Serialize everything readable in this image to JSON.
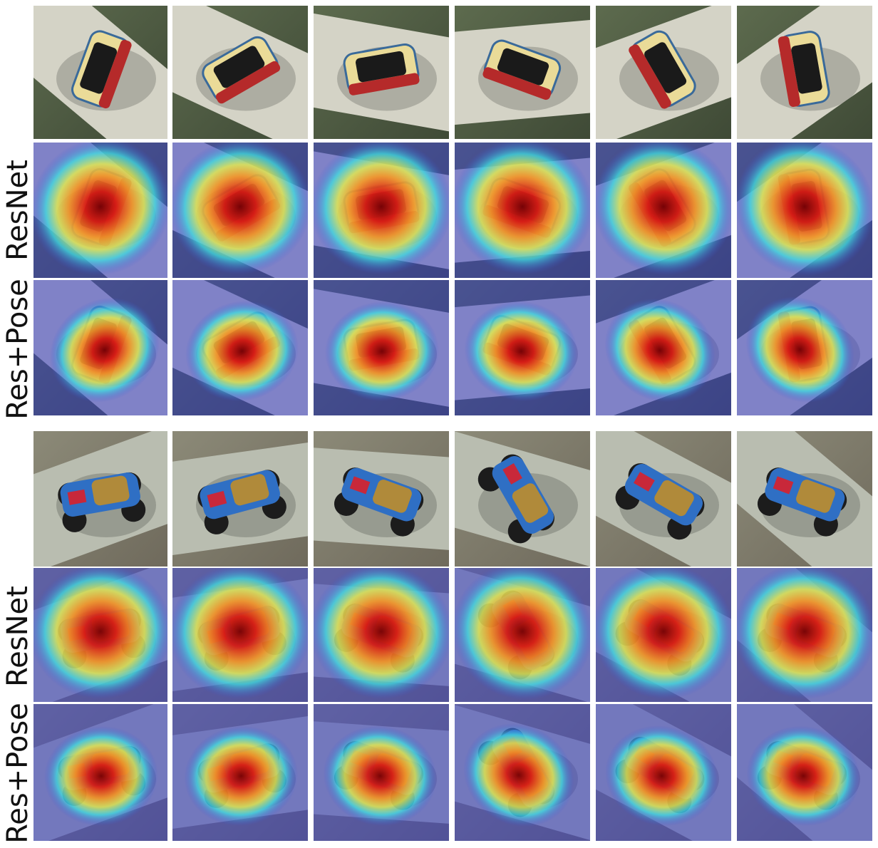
{
  "figure": {
    "groups": [
      {
        "row_labels": [
          "ResNet",
          "Res+Pose"
        ]
      },
      {
        "row_labels": [
          "ResNet",
          "Res+Pose"
        ]
      }
    ]
  }
}
